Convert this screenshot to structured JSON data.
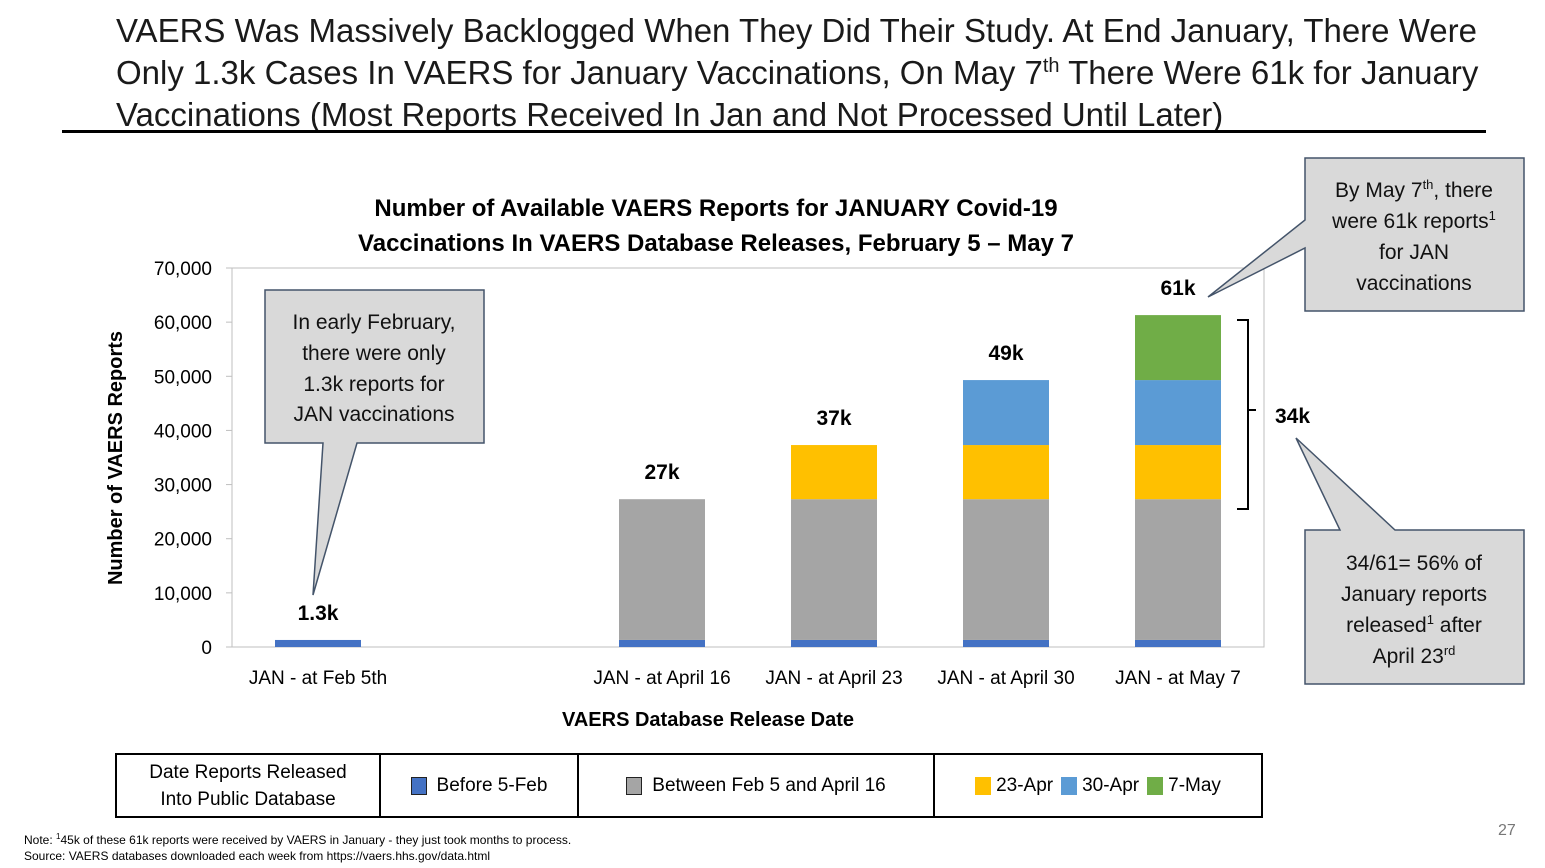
{
  "slide": {
    "title_part1": "VAERS Was Massively Backlogged When They Did Their Study.  At End January, There Were Only 1.3k Cases In VAERS for January Vaccinations, On May 7",
    "title_sup": "th",
    "title_part2": " There Were 61k for January Vaccinations (Most Reports Received In Jan and Not Processed Until Later)",
    "page_number": "27"
  },
  "chart_data": {
    "type": "bar",
    "stacked": true,
    "title_line1": "Number of Available VAERS Reports for JANUARY Covid-19",
    "title_line2": "Vaccinations In VAERS Database Releases, February 5 – May 7",
    "xlabel": "VAERS Database Release Date",
    "ylabel": "Number of VAERS Reports",
    "ylim": [
      0,
      70000
    ],
    "yticks": [
      "0",
      "10,000",
      "20,000",
      "30,000",
      "40,000",
      "50,000",
      "60,000",
      "70,000"
    ],
    "categories": [
      "JAN - at Feb 5th",
      "",
      "JAN - at April 16",
      "JAN - at April 23",
      "JAN - at April 30",
      "JAN - at May 7"
    ],
    "series": [
      {
        "name": "Before 5-Feb",
        "color": "#4472C4",
        "values": [
          1300,
          null,
          1300,
          1300,
          1300,
          1300
        ]
      },
      {
        "name": "Between Feb 5 and April 16",
        "color": "#A5A5A5",
        "values": [
          0,
          null,
          26000,
          26000,
          26000,
          26000
        ]
      },
      {
        "name": "23-Apr",
        "color": "#FFC000",
        "values": [
          0,
          null,
          0,
          10000,
          10000,
          10000
        ]
      },
      {
        "name": "30-Apr",
        "color": "#5B9BD5",
        "values": [
          0,
          null,
          0,
          0,
          12000,
          12000
        ]
      },
      {
        "name": "7-May",
        "color": "#70AD47",
        "values": [
          0,
          null,
          0,
          0,
          0,
          12000
        ]
      }
    ],
    "data_labels": [
      "1.3k",
      "",
      "27k",
      "37k",
      "49k",
      "61k"
    ],
    "bracket_label": "34k"
  },
  "callouts": {
    "early_feb": [
      "In early February,",
      "there were only",
      "1.3k reports for",
      "JAN vaccinations"
    ],
    "may7_line1": "By May 7",
    "may7_sup": "th",
    "may7_line1_end": ", there",
    "may7_line2": "were 61k reports",
    "may7_line2_sup": "1",
    "may7_line3": "for JAN",
    "may7_line4": "vaccinations",
    "pct_line1": "34/61= 56% of",
    "pct_line2": "January reports",
    "pct_line3": "released",
    "pct_line3_sup": "1",
    "pct_line3_end": " after",
    "pct_line4": "April 23",
    "pct_line4_sup": "rd"
  },
  "legend": {
    "header_line1": "Date Reports Released",
    "header_line2": "Into Public Database"
  },
  "notes": {
    "note_prefix": "Note:  ",
    "note_sup": "1",
    "note_text": "45k of these 61k reports were received by VAERS in January  - they just took months to process.",
    "source": "Source: VAERS databases downloaded each week from   https://vaers.hhs.gov/data.html"
  }
}
